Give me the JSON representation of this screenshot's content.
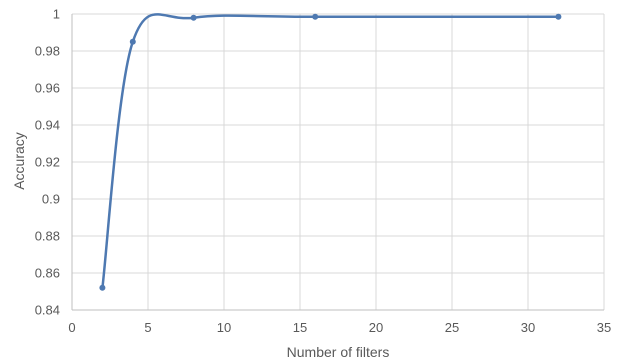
{
  "chart_data": {
    "type": "line",
    "smooth": true,
    "title": "",
    "xlabel": "Number of filters",
    "ylabel": "Accuracy",
    "xlim": [
      0,
      35
    ],
    "ylim": [
      0.84,
      1
    ],
    "xticks": [
      0,
      5,
      10,
      15,
      20,
      25,
      30,
      35
    ],
    "yticks": [
      0.84,
      0.86,
      0.88,
      0.9,
      0.92,
      0.94,
      0.96,
      0.98,
      1
    ],
    "grid": true,
    "legend": "none",
    "series": [
      {
        "x": [
          2,
          4,
          8,
          16,
          32
        ],
        "values": [
          0.852,
          0.985,
          0.998,
          0.9985,
          0.9985
        ],
        "color": "#4e79b1"
      }
    ]
  }
}
